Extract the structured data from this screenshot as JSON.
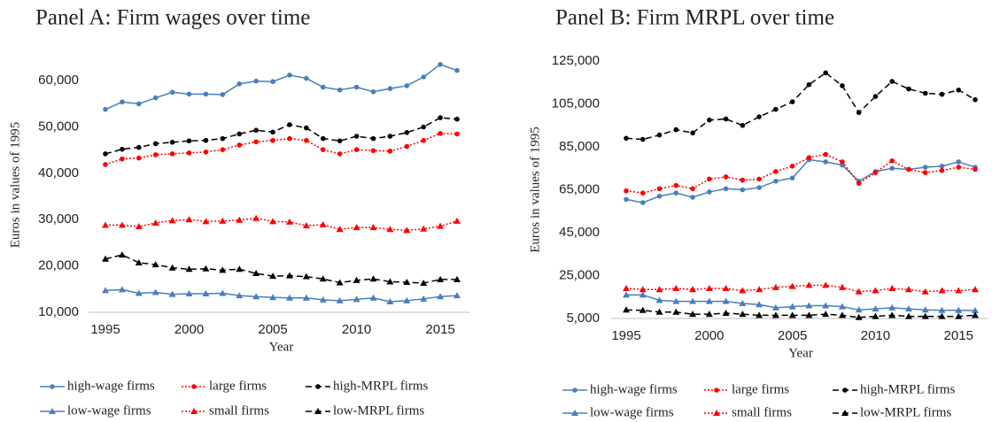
{
  "chart_data": [
    {
      "type": "line",
      "title": "Panel A: Firm wages over time",
      "x_label": "Year",
      "y_label": "Euros in values of 1995",
      "x": [
        1995,
        1996,
        1997,
        1998,
        1999,
        2000,
        2001,
        2002,
        2003,
        2004,
        2005,
        2006,
        2007,
        2008,
        2009,
        2010,
        2011,
        2012,
        2013,
        2014,
        2015,
        2016
      ],
      "xlim": [
        1995,
        2016
      ],
      "xticks": [
        1995,
        2000,
        2005,
        2010,
        2015
      ],
      "ylim": [
        10000,
        65000
      ],
      "yticks": [
        {
          "value": 10000,
          "label": "10,000"
        },
        {
          "value": 20000,
          "label": "20,000"
        },
        {
          "value": 30000,
          "label": "30,000"
        },
        {
          "value": 40000,
          "label": "40,000"
        },
        {
          "value": 50000,
          "label": "50,000"
        },
        {
          "value": 60000,
          "label": "60,000"
        }
      ],
      "grid": false,
      "series": [
        {
          "name": "high-wage firms",
          "color": "#4a7ebb",
          "marker": "circle",
          "dash": "solid",
          "values": [
            53800,
            55400,
            55000,
            56300,
            57500,
            57100,
            57100,
            57000,
            59300,
            59900,
            59800,
            61200,
            60500,
            58600,
            58000,
            58600,
            57600,
            58300,
            58900,
            60800,
            63500,
            62200
          ]
        },
        {
          "name": "large firms",
          "color": "#ff0000",
          "marker": "circle",
          "dash": "dotted",
          "values": [
            41900,
            43100,
            43300,
            44000,
            44200,
            44400,
            44600,
            45100,
            46100,
            46800,
            47100,
            47500,
            47100,
            45100,
            44200,
            45100,
            44900,
            44800,
            45800,
            47100,
            48600,
            48500
          ]
        },
        {
          "name": "high-MRPL firms",
          "color": "#000000",
          "marker": "circle",
          "dash": "dashed",
          "values": [
            44200,
            45200,
            45600,
            46400,
            46700,
            47000,
            47100,
            47500,
            48500,
            49300,
            48900,
            50500,
            49800,
            47500,
            47000,
            48000,
            47500,
            48000,
            48800,
            50000,
            52000,
            51700
          ]
        },
        {
          "name": "low-wage firms",
          "color": "#4a7ebb",
          "marker": "triangle",
          "dash": "solid",
          "values": [
            14700,
            14900,
            14100,
            14300,
            13900,
            14000,
            14000,
            14100,
            13600,
            13400,
            13200,
            13100,
            13100,
            12700,
            12500,
            12800,
            13100,
            12300,
            12500,
            12900,
            13400,
            13600
          ]
        },
        {
          "name": "small firms",
          "color": "#ff0000",
          "marker": "triangle",
          "dash": "dotted",
          "values": [
            28800,
            28800,
            28500,
            29300,
            29800,
            30000,
            29600,
            29700,
            29900,
            30300,
            29600,
            29500,
            28700,
            28900,
            27900,
            28300,
            28300,
            27900,
            27700,
            28000,
            28600,
            29700
          ]
        },
        {
          "name": "low-MRPL firms",
          "color": "#000000",
          "marker": "triangle",
          "dash": "dashed",
          "values": [
            21500,
            22400,
            20700,
            20300,
            19600,
            19300,
            19400,
            19100,
            19300,
            18400,
            17800,
            17900,
            17700,
            17200,
            16400,
            16900,
            17200,
            16600,
            16500,
            16300,
            17100,
            17100
          ]
        }
      ]
    },
    {
      "type": "line",
      "title": "Panel B: Firm MRPL over time",
      "x_label": "Year",
      "y_label": "Euros in values of 1995",
      "x": [
        1995,
        1996,
        1997,
        1998,
        1999,
        2000,
        2001,
        2002,
        2003,
        2004,
        2005,
        2006,
        2007,
        2008,
        2009,
        2010,
        2011,
        2012,
        2013,
        2014,
        2015,
        2016
      ],
      "xlim": [
        1995,
        2016
      ],
      "xticks": [
        1995,
        2000,
        2005,
        2010,
        2015
      ],
      "ylim": [
        5000,
        125000
      ],
      "yticks": [
        {
          "value": 5000,
          "label": "5,000"
        },
        {
          "value": 25000,
          "label": "25,000"
        },
        {
          "value": 45000,
          "label": "45,000"
        },
        {
          "value": 65000,
          "label": "65,000"
        },
        {
          "value": 85000,
          "label": "85,000"
        },
        {
          "value": 105000,
          "label": "105,000"
        },
        {
          "value": 125000,
          "label": "125,000"
        }
      ],
      "grid": false,
      "series": [
        {
          "name": "high-wage firms",
          "color": "#4a7ebb",
          "marker": "circle",
          "dash": "solid",
          "values": [
            60500,
            59000,
            62000,
            63500,
            61500,
            64000,
            65500,
            65000,
            66000,
            69000,
            70500,
            79000,
            78000,
            76500,
            69000,
            73500,
            75000,
            74500,
            75500,
            76000,
            78000,
            75500
          ]
        },
        {
          "name": "large firms",
          "color": "#ff0000",
          "marker": "circle",
          "dash": "dotted",
          "values": [
            64500,
            63500,
            65500,
            67000,
            65500,
            70000,
            71000,
            69500,
            70000,
            73500,
            76000,
            80000,
            81500,
            78000,
            68000,
            73000,
            78500,
            74500,
            73000,
            74000,
            75500,
            74500
          ]
        },
        {
          "name": "high-MRPL firms",
          "color": "#000000",
          "marker": "circle",
          "dash": "dashed",
          "values": [
            89000,
            88500,
            90500,
            93000,
            91500,
            97500,
            98000,
            95000,
            99000,
            102500,
            106000,
            114000,
            119500,
            113500,
            101000,
            108500,
            115500,
            112000,
            110000,
            109500,
            111500,
            107000
          ]
        },
        {
          "name": "low-wage firms",
          "color": "#4a7ebb",
          "marker": "triangle",
          "dash": "solid",
          "values": [
            16000,
            16000,
            13500,
            13000,
            13000,
            13000,
            13000,
            12000,
            11500,
            10000,
            10500,
            11000,
            11000,
            10500,
            9000,
            9500,
            10000,
            9500,
            9000,
            8800,
            8800,
            8700
          ]
        },
        {
          "name": "small firms",
          "color": "#ff0000",
          "marker": "triangle",
          "dash": "dotted",
          "values": [
            19000,
            18500,
            18500,
            19000,
            18500,
            19000,
            19000,
            18000,
            18500,
            19500,
            20000,
            20500,
            20500,
            19500,
            17500,
            18000,
            19000,
            18500,
            17500,
            18000,
            18000,
            18500
          ]
        },
        {
          "name": "low-MRPL firms",
          "color": "#000000",
          "marker": "triangle",
          "dash": "dashed",
          "values": [
            9000,
            8800,
            8000,
            8000,
            7000,
            7000,
            7500,
            7000,
            6500,
            6500,
            6500,
            6500,
            7000,
            6500,
            5500,
            6000,
            6500,
            6000,
            6000,
            6000,
            6000,
            6500
          ]
        }
      ]
    }
  ]
}
